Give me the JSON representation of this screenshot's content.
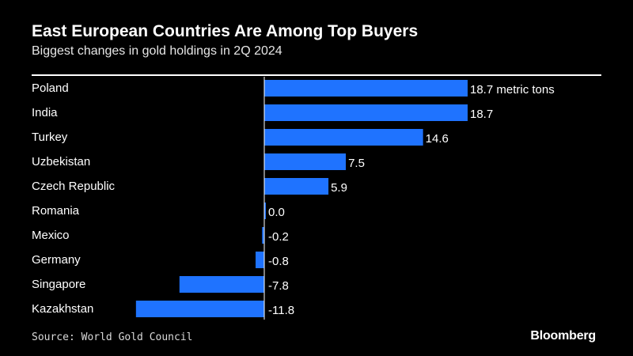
{
  "header": {
    "title": "East European Countries Are Among Top Buyers",
    "subtitle": "Biggest changes in gold holdings in 2Q 2024"
  },
  "footer": {
    "source": "Source: World Gold Council",
    "brand": "Bloomberg"
  },
  "colors": {
    "background": "#000000",
    "bar": "#1f73ff",
    "text": "#ffffff",
    "axis": "#ffffff"
  },
  "chart_data": {
    "type": "bar",
    "orientation": "horizontal",
    "title": "East European Countries Are Among Top Buyers",
    "subtitle": "Biggest changes in gold holdings in 2Q 2024",
    "unit": "metric tons",
    "categories": [
      "Poland",
      "India",
      "Turkey",
      "Uzbekistan",
      "Czech Republic",
      "Romania",
      "Mexico",
      "Germany",
      "Singapore",
      "Kazakhstan"
    ],
    "values": [
      18.7,
      18.7,
      14.6,
      7.5,
      5.9,
      0.0,
      -0.2,
      -0.8,
      -7.8,
      -11.8
    ],
    "value_labels": [
      "18.7 metric tons",
      "18.7",
      "14.6",
      "7.5",
      "5.9",
      "0.0",
      "-0.2",
      "-0.8",
      "-7.8",
      "-11.8"
    ],
    "xlabel": "",
    "ylabel": "",
    "xlim": [
      -11.8,
      18.7
    ],
    "grid": false,
    "legend": "none"
  }
}
